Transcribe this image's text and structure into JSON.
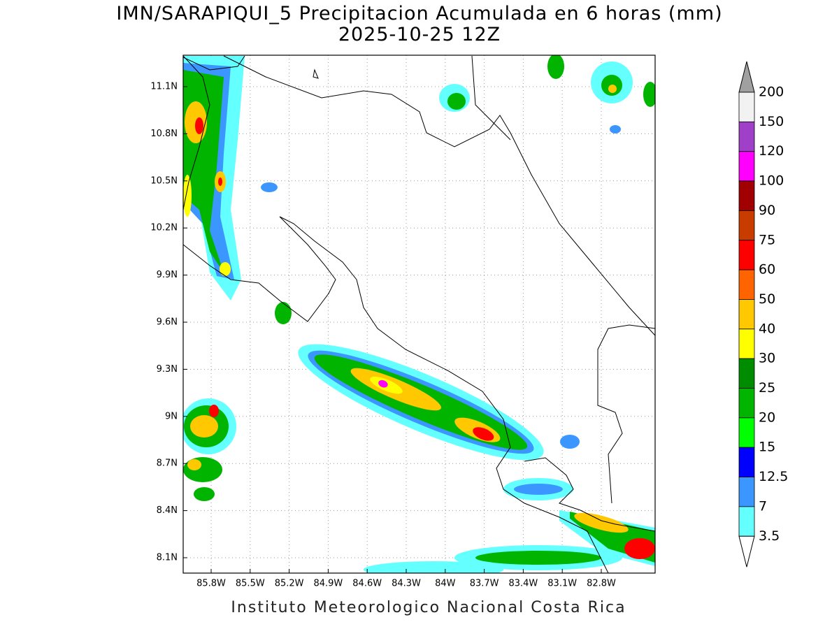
{
  "title": "IMN/SARAPIQUI_5 Precipitacion Acumulada en 6 horas (mm)",
  "subtitle": "2025-10-25 12Z",
  "x_axis": {
    "ticks": [
      "85.8W",
      "85.5W",
      "85.2W",
      "84.9W",
      "84.6W",
      "84.3W",
      "84W",
      "83.7W",
      "83.4W",
      "83.1W",
      "82.8W"
    ]
  },
  "y_axis": {
    "ticks": [
      "11.1N",
      "10.8N",
      "10.5N",
      "10.2N",
      "9.9N",
      "9.6N",
      "9.3N",
      "9N",
      "8.7N",
      "8.4N",
      "8.1N"
    ]
  },
  "colorbar": {
    "labels": [
      "200",
      "150",
      "120",
      "100",
      "90",
      "75",
      "60",
      "50",
      "40",
      "30",
      "25",
      "20",
      "15",
      "12.5",
      "7",
      "3.5"
    ],
    "colors": [
      "#f2f2f2",
      "#a040c8",
      "#ff00ff",
      "#a00000",
      "#c83c00",
      "#ff0000",
      "#ff6400",
      "#ffc800",
      "#ffff00",
      "#008c00",
      "#00b400",
      "#00ff00",
      "#0000ff",
      "#3c96ff",
      "#64ffff"
    ],
    "top_color": "#a0a0a0",
    "bottom_color": "#ffffff"
  },
  "footer": "Instituto Meteorologico Nacional Costa Rica"
}
